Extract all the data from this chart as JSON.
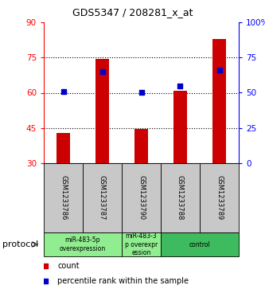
{
  "title": "GDS5347 / 208281_x_at",
  "samples": [
    "GSM1233786",
    "GSM1233787",
    "GSM1233790",
    "GSM1233788",
    "GSM1233789"
  ],
  "bar_values": [
    43.0,
    74.5,
    44.5,
    61.0,
    83.0
  ],
  "percentile_values": [
    51.0,
    65.0,
    50.5,
    55.0,
    66.0
  ],
  "bar_color": "#cc0000",
  "percentile_color": "#0000cc",
  "ylim_left": [
    30,
    90
  ],
  "ylim_right": [
    0,
    100
  ],
  "yticks_left": [
    30,
    45,
    60,
    75,
    90
  ],
  "yticks_right": [
    0,
    25,
    50,
    75,
    100
  ],
  "ytick_labels_right": [
    "0",
    "25",
    "50",
    "75",
    "100%"
  ],
  "grid_values": [
    45,
    60,
    75
  ],
  "legend_count_label": "count",
  "legend_percentile_label": "percentile rank within the sample",
  "label_area_color": "#c8c8c8",
  "group_light_color": "#90ee90",
  "group_dark_color": "#3dbb5e",
  "bar_width": 0.35
}
